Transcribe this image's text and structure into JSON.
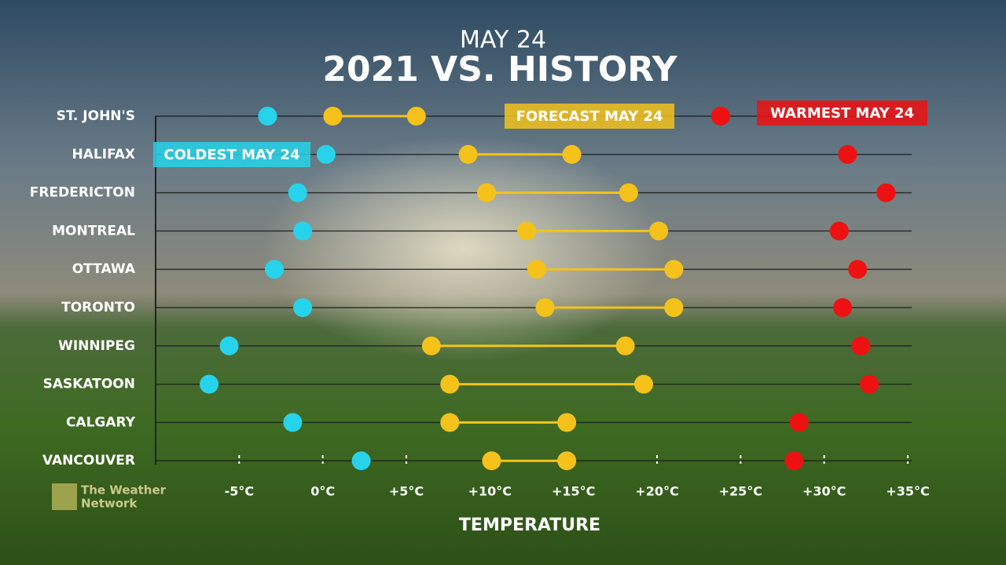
{
  "chart_data": {
    "type": "dot-range",
    "subtitle": "MAY 24",
    "title": "2021 VS. HISTORY",
    "x_label": "TEMPERATURE",
    "brand": [
      "The Weather",
      "Network"
    ],
    "categories": [
      "ST. JOHN'S",
      "HALIFAX",
      "FREDERICTON",
      "MONTREAL",
      "OTTAWA",
      "TORONTO",
      "WINNIPEG",
      "SASKATOON",
      "CALGARY",
      "VANCOUVER"
    ],
    "series": [
      {
        "name": "COLDEST MAY 24",
        "color": "#27d3ea",
        "values": [
          -3.3,
          0.2,
          -1.5,
          -1.2,
          -2.9,
          -1.2,
          -5.6,
          -6.8,
          -1.8,
          2.3
        ]
      },
      {
        "name": "FORECAST MAY 24",
        "color": "#f4c21b",
        "low": [
          0.6,
          8.7,
          9.8,
          12.2,
          12.8,
          13.3,
          6.5,
          7.6,
          7.6,
          10.1
        ],
        "high": [
          5.6,
          14.9,
          18.3,
          20.1,
          21.0,
          21.0,
          18.1,
          19.2,
          14.6,
          14.6
        ]
      },
      {
        "name": "WARMEST MAY 24",
        "color": "#ee1111",
        "values": [
          23.8,
          31.4,
          33.7,
          30.9,
          32.0,
          31.1,
          32.2,
          32.7,
          28.5,
          28.2
        ]
      }
    ],
    "xlim": [
      -10,
      35
    ],
    "xticks": [
      {
        "value": -5,
        "label": "-5°C"
      },
      {
        "value": 0,
        "label": "0°C"
      },
      {
        "value": 5,
        "label": "+5°C"
      },
      {
        "value": 10,
        "label": "+10°C"
      },
      {
        "value": 15,
        "label": "+15°C"
      },
      {
        "value": 20,
        "label": "+20°C"
      },
      {
        "value": 25,
        "label": "+25°C"
      },
      {
        "value": 30,
        "label": "+30°C"
      },
      {
        "value": 35,
        "label": "+35°C"
      }
    ]
  }
}
